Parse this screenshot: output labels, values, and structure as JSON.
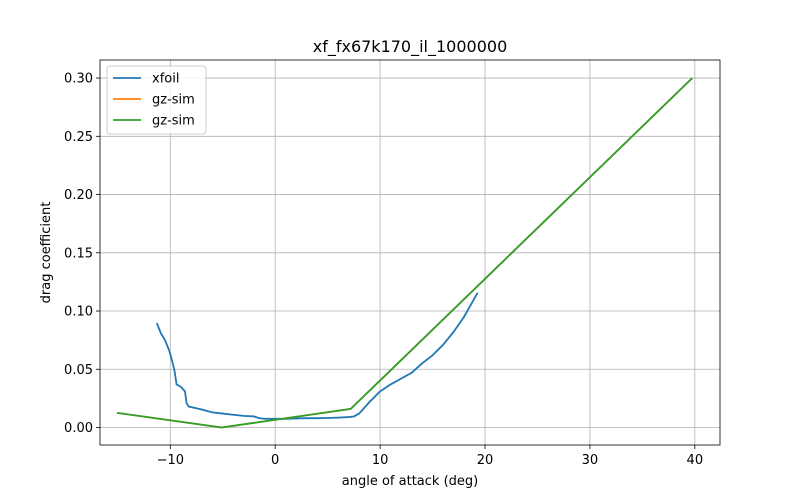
{
  "chart_data": {
    "type": "line",
    "title": "xf_fx67k170_il_1000000",
    "xlabel": "angle of attack (deg)",
    "ylabel": "drag coefficient",
    "xlim": [
      -16.7,
      42.4
    ],
    "ylim": [
      -0.015,
      0.3155
    ],
    "xticks": [
      -10,
      0,
      10,
      20,
      30,
      40
    ],
    "xtick_labels": [
      "−10",
      "0",
      "10",
      "20",
      "30",
      "40"
    ],
    "yticks": [
      0.0,
      0.05,
      0.1,
      0.15,
      0.2,
      0.25,
      0.3
    ],
    "ytick_labels": [
      "0.00",
      "0.05",
      "0.10",
      "0.15",
      "0.20",
      "0.25",
      "0.30"
    ],
    "grid": true,
    "legend_position": "top-left",
    "series": [
      {
        "name": "xfoil",
        "color": "#1f77b4",
        "x": [
          -11.25,
          -10.9,
          -10.5,
          -10.1,
          -9.85,
          -9.6,
          -9.4,
          -9.0,
          -8.6,
          -8.45,
          -8.25,
          -8.0,
          -7.0,
          -6.0,
          -5.0,
          -4.0,
          -3.0,
          -2.0,
          -1.5,
          -1.0,
          0.0,
          1.0,
          2.0,
          3.0,
          4.0,
          5.0,
          6.0,
          7.0,
          7.5,
          8.0,
          9.0,
          10.0,
          11.0,
          12.0,
          13.0,
          14.0,
          15.0,
          16.0,
          17.0,
          18.0,
          19.25
        ],
        "y": [
          0.089,
          0.081,
          0.075,
          0.066,
          0.058,
          0.049,
          0.037,
          0.035,
          0.031,
          0.021,
          0.018,
          0.0175,
          0.0155,
          0.013,
          0.012,
          0.011,
          0.01,
          0.0095,
          0.008,
          0.0075,
          0.0075,
          0.0075,
          0.0078,
          0.008,
          0.008,
          0.0082,
          0.0085,
          0.009,
          0.0095,
          0.012,
          0.022,
          0.031,
          0.037,
          0.042,
          0.047,
          0.055,
          0.062,
          0.071,
          0.082,
          0.095,
          0.115
        ]
      },
      {
        "name": "gz-sim",
        "color": "#ff7f0e",
        "x": [
          -15.0,
          -5.1,
          7.2,
          39.7
        ],
        "y": [
          0.0125,
          0.0,
          0.016,
          0.2995
        ]
      },
      {
        "name": "gz-sim",
        "color": "#2ca02c",
        "x": [
          -15.0,
          -5.1,
          7.2,
          39.7
        ],
        "y": [
          0.0125,
          0.0,
          0.016,
          0.2995
        ]
      }
    ]
  }
}
